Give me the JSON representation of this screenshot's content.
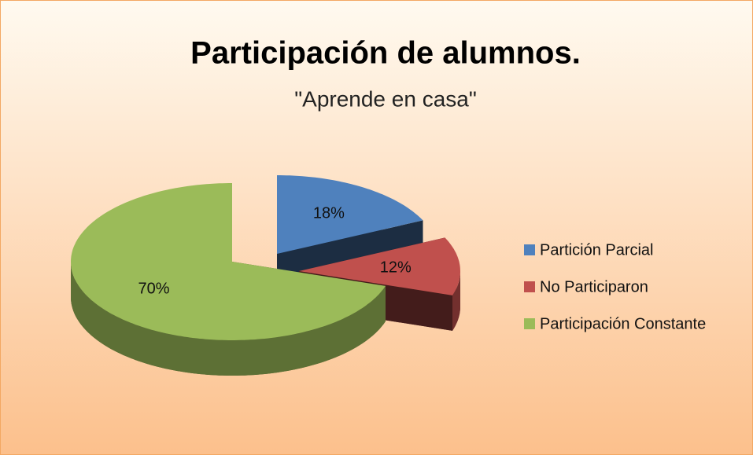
{
  "chart_data": {
    "type": "pie",
    "title": "Participación de alumnos.",
    "subtitle": "\"Aprende en casa\"",
    "categories": [
      "Partición Parcial",
      "No Participaron",
      "Participación Constante"
    ],
    "values": [
      18,
      12,
      70
    ],
    "value_labels": [
      "18%",
      "12%",
      "70%"
    ],
    "colors": [
      "#4f81bd",
      "#c0504d",
      "#9bbb59"
    ],
    "legend": "right"
  }
}
